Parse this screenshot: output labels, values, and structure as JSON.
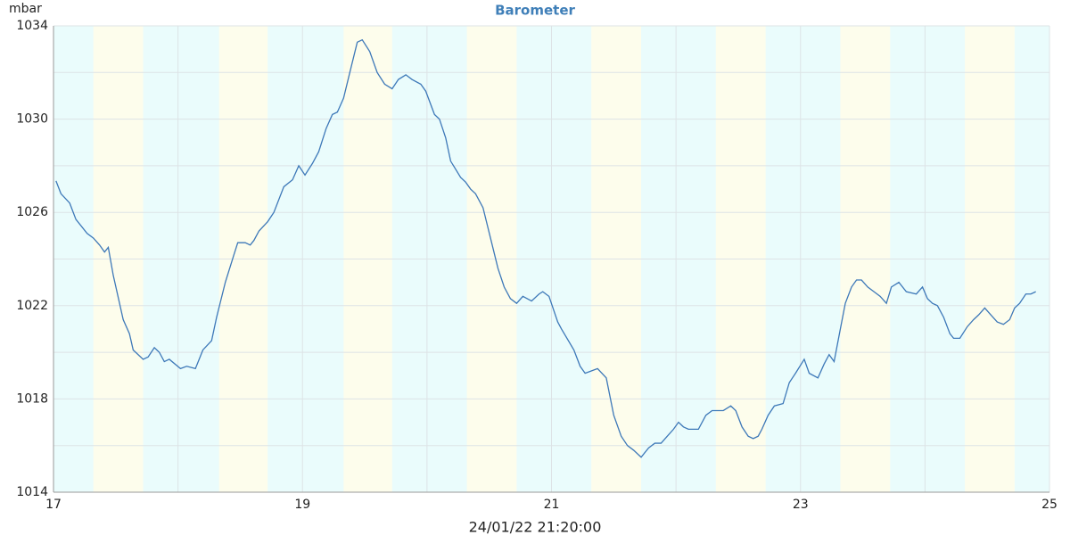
{
  "chart_data": {
    "type": "line",
    "title": "Barometer",
    "y_label": "mbar",
    "footer": "24/01/22 21:20:00",
    "xlim": [
      17,
      25
    ],
    "xticks": [
      17,
      19,
      21,
      23,
      25
    ],
    "minor_xticks": [
      18,
      20,
      22,
      24
    ],
    "ylim": [
      1014,
      1034
    ],
    "yticks": [
      1014,
      1018,
      1022,
      1026,
      1030,
      1034
    ],
    "minor_yticks": [
      1016,
      1020,
      1024,
      1028,
      1032
    ],
    "grid": true,
    "background_color": "#eafcfc",
    "band_color": "#fdfdec",
    "bands": [
      [
        17.32,
        17.72
      ],
      [
        18.33,
        18.72
      ],
      [
        19.33,
        19.72
      ],
      [
        20.32,
        20.72
      ],
      [
        21.32,
        21.72
      ],
      [
        22.32,
        22.72
      ],
      [
        23.32,
        23.72
      ],
      [
        24.32,
        24.72
      ]
    ],
    "series": [
      {
        "name": "Barometer",
        "color": "#3d78b8",
        "x": [
          17.02,
          17.06,
          17.13,
          17.18,
          17.27,
          17.32,
          17.37,
          17.41,
          17.44,
          17.48,
          17.56,
          17.61,
          17.64,
          17.72,
          17.76,
          17.81,
          17.85,
          17.89,
          17.93,
          18.02,
          18.07,
          18.14,
          18.2,
          18.27,
          18.31,
          18.38,
          18.45,
          18.48,
          18.54,
          18.58,
          18.61,
          18.65,
          18.72,
          18.77,
          18.85,
          18.92,
          18.97,
          19.02,
          19.08,
          19.13,
          19.19,
          19.24,
          19.28,
          19.33,
          19.38,
          19.44,
          19.48,
          19.54,
          19.6,
          19.66,
          19.72,
          19.77,
          19.83,
          19.88,
          19.95,
          19.99,
          20.06,
          20.1,
          20.15,
          20.19,
          20.27,
          20.31,
          20.35,
          20.39,
          20.45,
          20.51,
          20.57,
          20.62,
          20.67,
          20.72,
          20.77,
          20.84,
          20.9,
          20.93,
          20.98,
          21.05,
          21.08,
          21.18,
          21.23,
          21.27,
          21.32,
          21.37,
          21.44,
          21.5,
          21.56,
          21.61,
          21.66,
          21.72,
          21.78,
          21.83,
          21.88,
          21.93,
          21.98,
          22.02,
          22.06,
          22.1,
          22.18,
          22.24,
          22.29,
          22.34,
          22.38,
          22.44,
          22.48,
          22.53,
          22.58,
          22.62,
          22.66,
          22.69,
          22.74,
          22.79,
          22.86,
          22.91,
          22.96,
          23.03,
          23.07,
          23.14,
          23.19,
          23.23,
          23.27,
          23.32,
          23.36,
          23.41,
          23.45,
          23.49,
          23.54,
          23.59,
          23.64,
          23.69,
          23.73,
          23.79,
          23.85,
          23.93,
          23.98,
          24.02,
          24.06,
          24.1,
          24.15,
          24.2,
          24.23,
          24.28,
          24.34,
          24.39,
          24.43,
          24.48,
          24.53,
          24.58,
          24.63,
          24.68,
          24.72,
          24.76,
          24.81,
          24.85,
          24.89
        ],
        "values": [
          1027.35,
          1026.8,
          1026.4,
          1025.7,
          1025.1,
          1024.9,
          1024.6,
          1024.3,
          1024.5,
          1023.3,
          1021.4,
          1020.8,
          1020.1,
          1019.7,
          1019.8,
          1020.2,
          1020.0,
          1019.6,
          1019.7,
          1019.3,
          1019.4,
          1019.3,
          1020.1,
          1020.5,
          1021.5,
          1023.0,
          1024.2,
          1024.7,
          1024.7,
          1024.6,
          1024.8,
          1025.2,
          1025.6,
          1026.0,
          1027.1,
          1027.4,
          1028.0,
          1027.6,
          1028.1,
          1028.6,
          1029.6,
          1030.2,
          1030.3,
          1030.9,
          1032.0,
          1033.3,
          1033.4,
          1032.9,
          1032.0,
          1031.5,
          1031.3,
          1031.7,
          1031.9,
          1031.7,
          1031.5,
          1031.2,
          1030.2,
          1030.0,
          1029.2,
          1028.2,
          1027.5,
          1027.3,
          1027.0,
          1026.8,
          1026.2,
          1024.9,
          1023.6,
          1022.8,
          1022.3,
          1022.1,
          1022.4,
          1022.2,
          1022.5,
          1022.6,
          1022.4,
          1021.3,
          1021.0,
          1020.1,
          1019.4,
          1019.1,
          1019.2,
          1019.3,
          1018.9,
          1017.3,
          1016.4,
          1016.0,
          1015.8,
          1015.5,
          1015.9,
          1016.1,
          1016.1,
          1016.4,
          1016.7,
          1017.0,
          1016.8,
          1016.7,
          1016.7,
          1017.3,
          1017.5,
          1017.5,
          1017.5,
          1017.7,
          1017.5,
          1016.8,
          1016.4,
          1016.3,
          1016.4,
          1016.7,
          1017.3,
          1017.7,
          1017.8,
          1018.7,
          1019.1,
          1019.7,
          1019.1,
          1018.9,
          1019.5,
          1019.9,
          1019.6,
          1021.0,
          1022.1,
          1022.8,
          1023.1,
          1023.1,
          1022.8,
          1022.6,
          1022.4,
          1022.1,
          1022.8,
          1023.0,
          1022.6,
          1022.5,
          1022.8,
          1022.3,
          1022.1,
          1022.0,
          1021.5,
          1020.8,
          1020.6,
          1020.6,
          1021.1,
          1021.4,
          1021.6,
          1021.9,
          1021.6,
          1021.3,
          1021.2,
          1021.4,
          1021.9,
          1022.1,
          1022.5,
          1022.5,
          1022.6
        ]
      }
    ]
  }
}
